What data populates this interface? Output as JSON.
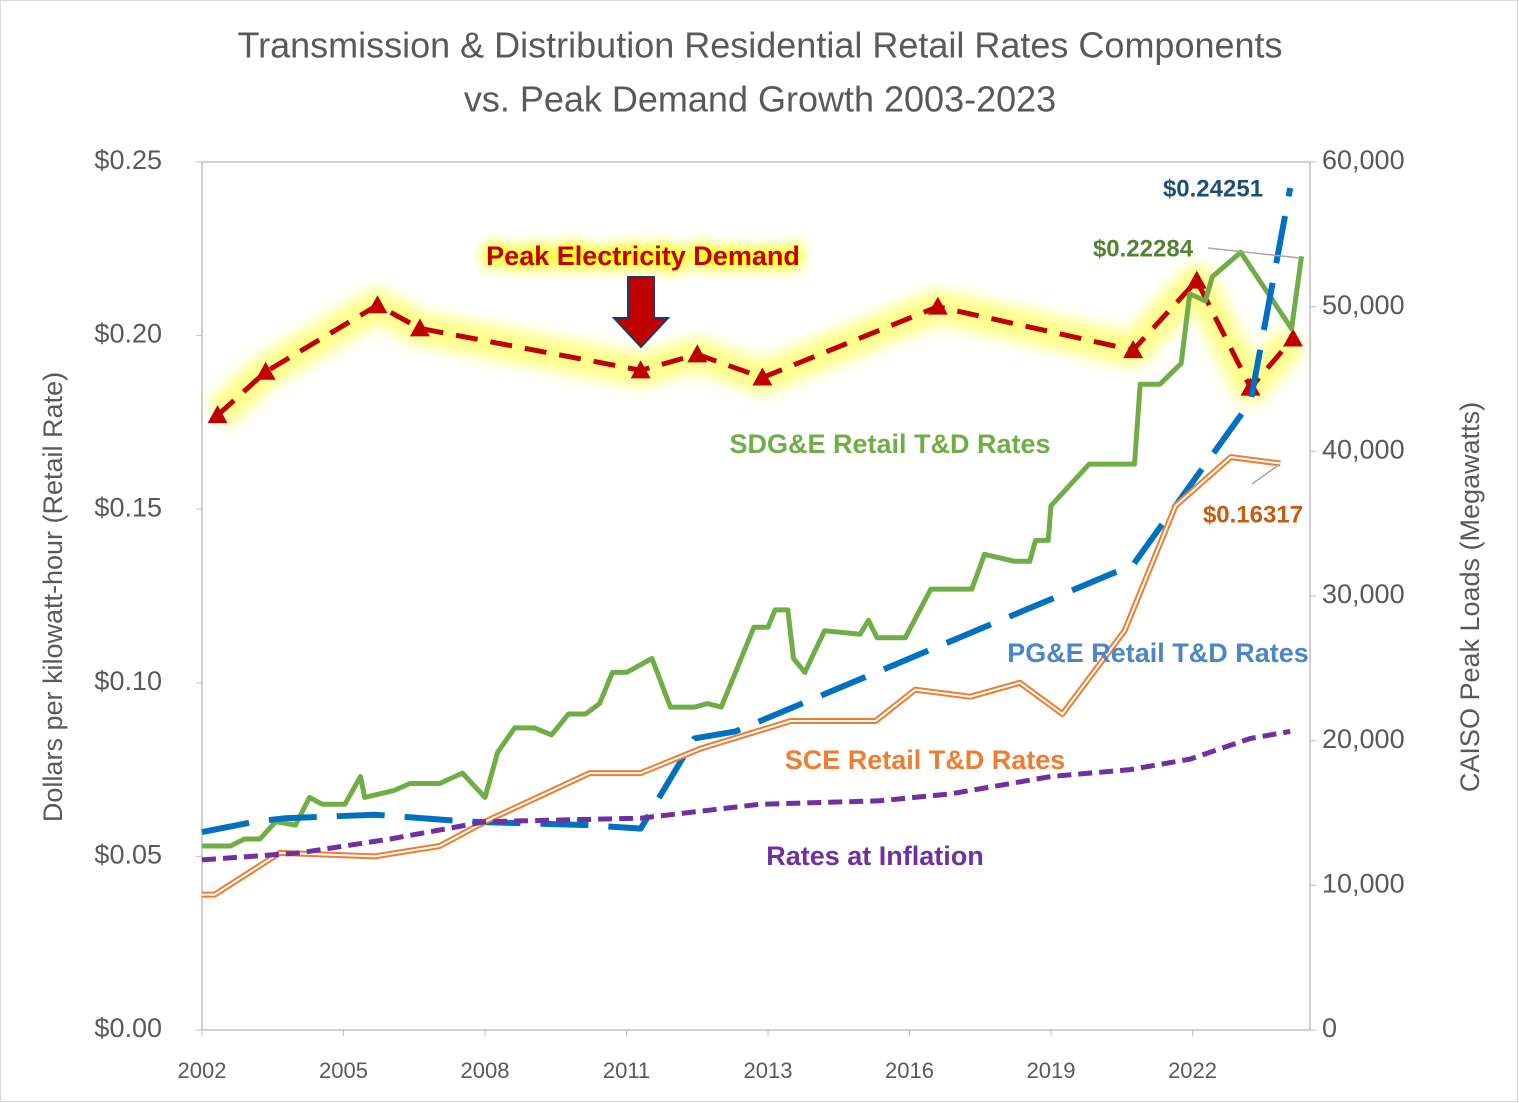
{
  "chart_data": {
    "type": "line",
    "title": [
      "Transmission & Distribution Residential Retail Rates Components",
      "vs. Peak Demand Growth 2003-2023"
    ],
    "ylabel": "Dollars per kilowatt-hour (Retail Rate)",
    "y2label": "CAISO Peak Loads (Megawatts)",
    "xlim": [
      0,
      7.83
    ],
    "xticks": [
      {
        "value": 0,
        "label": "2002"
      },
      {
        "value": 1,
        "label": "2005"
      },
      {
        "value": 2,
        "label": "2008"
      },
      {
        "value": 3,
        "label": "2011"
      },
      {
        "value": 4,
        "label": "2013"
      },
      {
        "value": 5,
        "label": "2016"
      },
      {
        "value": 6,
        "label": "2019"
      },
      {
        "value": 7,
        "label": "2022"
      }
    ],
    "ylim": [
      0,
      0.25
    ],
    "yticks": [
      {
        "value": 0,
        "label": "$0.00"
      },
      {
        "value": 0.05,
        "label": "$0.05"
      },
      {
        "value": 0.1,
        "label": "$0.10"
      },
      {
        "value": 0.15,
        "label": "$0.15"
      },
      {
        "value": 0.2,
        "label": "$0.20"
      },
      {
        "value": 0.25,
        "label": "$0.25"
      }
    ],
    "y2lim": [
      0,
      60000
    ],
    "y2ticks": [
      0,
      {
        "value": 10000,
        "label": "10,000"
      },
      {
        "value": 20000,
        "label": "20,000"
      },
      {
        "value": 30000,
        "label": "30,000"
      },
      {
        "value": 40000,
        "label": "40,000"
      },
      {
        "value": 50000,
        "label": "50,000"
      },
      {
        "value": 60000,
        "label": "60,000"
      }
    ],
    "series": [
      {
        "name": "Peak Electricity Demand",
        "color": "#c00000",
        "style": "dashed",
        "axis": "y2",
        "x": [
          0.11,
          0.45,
          1.24,
          1.54,
          3.1,
          3.5,
          3.96,
          5.2,
          6.58,
          7.03,
          7.41,
          7.71
        ],
        "values": [
          42500,
          45500,
          50100,
          48500,
          45600,
          46700,
          45100,
          50000,
          47000,
          51800,
          44400,
          47800
        ]
      },
      {
        "name": "SDG&E Retail T&D Rates",
        "color": "#70ad47",
        "style": "solid",
        "x": [
          0,
          0.2,
          0.3,
          0.41,
          0.52,
          0.66,
          0.76,
          0.85,
          1.01,
          1.12,
          1.15,
          1.36,
          1.47,
          1.68,
          1.84,
          2.0,
          2.09,
          2.21,
          2.35,
          2.47,
          2.59,
          2.71,
          2.81,
          2.9,
          3.0,
          3.18,
          3.31,
          3.48,
          3.57,
          3.67,
          3.9,
          4.0,
          4.05,
          4.14,
          4.18,
          4.26,
          4.4,
          4.65,
          4.71,
          4.77,
          4.97,
          5.15,
          5.44,
          5.53,
          5.74,
          5.85,
          5.89,
          5.98,
          6.0,
          6.27,
          6.59,
          6.63,
          6.77,
          6.92,
          6.98,
          7.09,
          7.14,
          7.34,
          7.7,
          7.77
        ],
        "values": [
          0.053,
          0.053,
          0.055,
          0.055,
          0.06,
          0.059,
          0.067,
          0.065,
          0.065,
          0.073,
          0.067,
          0.069,
          0.071,
          0.071,
          0.074,
          0.067,
          0.08,
          0.087,
          0.087,
          0.085,
          0.091,
          0.091,
          0.094,
          0.103,
          0.103,
          0.107,
          0.093,
          0.093,
          0.094,
          0.093,
          0.116,
          0.116,
          0.121,
          0.121,
          0.107,
          0.103,
          0.115,
          0.114,
          0.118,
          0.113,
          0.113,
          0.127,
          0.127,
          0.137,
          0.135,
          0.135,
          0.141,
          0.141,
          0.151,
          0.163,
          0.163,
          0.186,
          0.186,
          0.192,
          0.212,
          0.21,
          0.217,
          0.224,
          0.202,
          0.22284
        ]
      },
      {
        "name": "PG&E Retail T&D Rates",
        "color": "#0070c0",
        "style": "longdash",
        "x": [
          0,
          0.37,
          0.59,
          1.22,
          1.89,
          2.74,
          3.1,
          3.48,
          3.77,
          6.58,
          7.41,
          7.69
        ],
        "values": [
          0.057,
          0.06,
          0.061,
          0.062,
          0.06,
          0.059,
          0.058,
          0.084,
          0.086,
          0.134,
          0.181,
          0.24251
        ]
      },
      {
        "name": "SCE Retail T&D Rates",
        "color": "#ed7d31",
        "style": "double",
        "x": [
          0,
          0.09,
          0.55,
          1.22,
          1.68,
          2.0,
          2.74,
          3.1,
          3.52,
          4.16,
          4.76,
          5.04,
          5.43,
          5.78,
          6.08,
          6.52,
          6.88,
          7.27,
          7.62
        ],
        "values": [
          0.039,
          0.039,
          0.051,
          0.05,
          0.053,
          0.06,
          0.074,
          0.074,
          0.081,
          0.089,
          0.089,
          0.098,
          0.096,
          0.1,
          0.091,
          0.115,
          0.151,
          0.165,
          0.16317
        ]
      },
      {
        "name": "Rates at Inflation",
        "color": "#7030a0",
        "style": "dotted",
        "x": [
          0,
          0.69,
          1.33,
          2.0,
          3.1,
          3.94,
          4.79,
          5.29,
          6.0,
          6.56,
          6.98,
          7.41,
          7.69
        ],
        "values": [
          0.049,
          0.051,
          0.055,
          0.06,
          0.061,
          0.065,
          0.066,
          0.068,
          0.073,
          0.075,
          0.078,
          0.084,
          0.086
        ]
      }
    ],
    "annotations": [
      {
        "text": "$0.24251",
        "color": "#1f4e79"
      },
      {
        "text": "$0.22284",
        "color": "#548235"
      },
      {
        "text": "$0.16317",
        "color": "#c55a11"
      }
    ]
  }
}
